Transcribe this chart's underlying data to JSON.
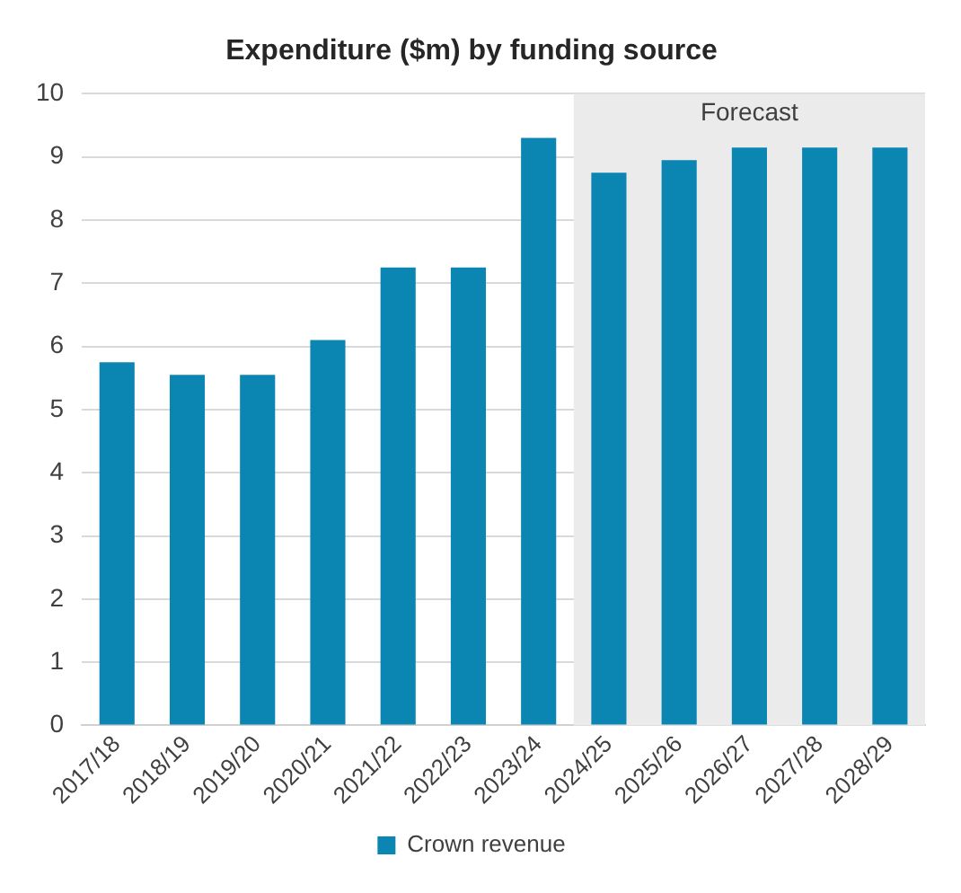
{
  "chart_data": {
    "type": "bar",
    "title": "Expenditure ($m) by funding source",
    "categories": [
      "2017/18",
      "2018/19",
      "2019/20",
      "2020/21",
      "2021/22",
      "2022/23",
      "2023/24",
      "2024/25",
      "2025/26",
      "2026/27",
      "2027/28",
      "2028/29"
    ],
    "series": [
      {
        "name": "Crown revenue",
        "color": "#0b85b2",
        "values": [
          5.75,
          5.55,
          5.55,
          6.1,
          7.25,
          7.25,
          9.3,
          8.75,
          8.95,
          9.15,
          9.15,
          9.15
        ]
      }
    ],
    "ylim": [
      0,
      10
    ],
    "yticks": [
      0,
      1,
      2,
      3,
      4,
      5,
      6,
      7,
      8,
      9,
      10
    ],
    "grid": "y",
    "legend": "bottom",
    "bands": [
      {
        "axis": "x",
        "from": "2024/25",
        "to": "2028/29",
        "label": "Forecast",
        "color": "#ebebeb"
      }
    ]
  }
}
